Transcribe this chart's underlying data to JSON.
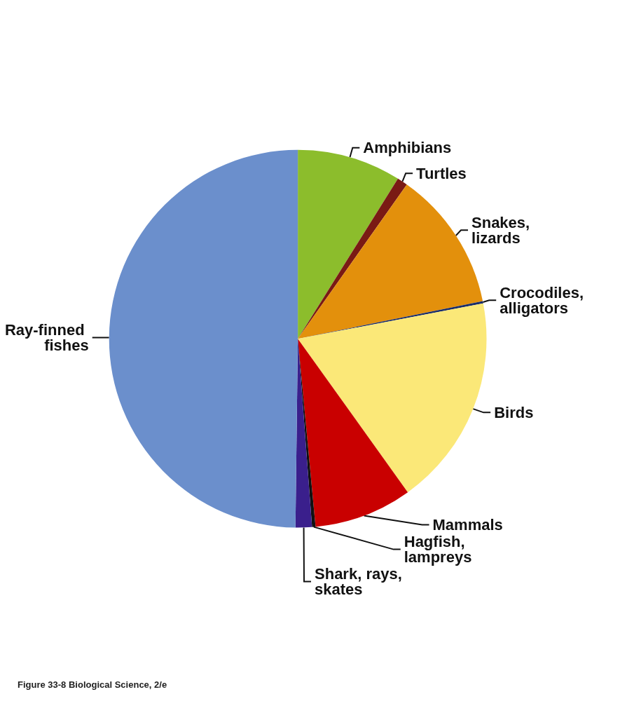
{
  "chart_data": {
    "type": "pie",
    "categories": [
      "Amphibians",
      "Turtles",
      "Snakes, lizards",
      "Crocodiles, alligators",
      "Birds",
      "Mammals",
      "Hagfish, lampreys",
      "Shark, rays, skates",
      "Ray-finned fishes"
    ],
    "values": [
      8.9,
      0.9,
      12,
      0.2,
      18.1,
      8.4,
      0.3,
      1.4,
      49.8
    ],
    "colors": [
      "#8cbd2c",
      "#7a1a14",
      "#e3900c",
      "#1a2d6a",
      "#fbe878",
      "#c90000",
      "#111111",
      "#3a1f8c",
      "#6b8fcc"
    ],
    "legend": false,
    "annotations": [
      "Figure 33-8 Biological Science, 2/e"
    ]
  }
}
